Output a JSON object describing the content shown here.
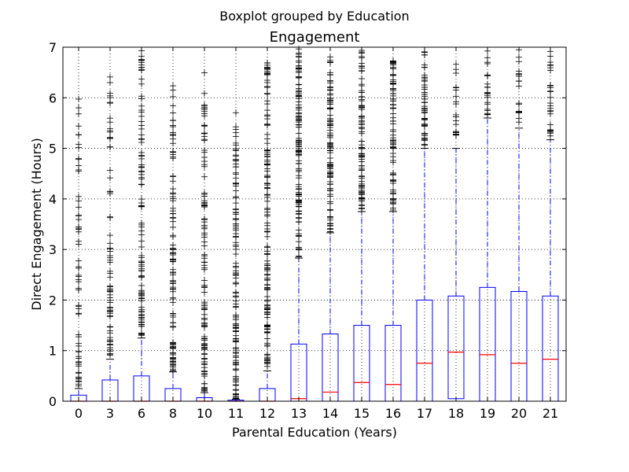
{
  "chart_data": {
    "type": "boxplot",
    "suptitle": "Boxplot grouped by Education",
    "title": "Engagement",
    "xlabel": "Parental Education (Years)",
    "ylabel": "Direct Engagement (Hours)",
    "ylim": [
      0,
      7
    ],
    "yticks": [
      "0",
      "1",
      "2",
      "3",
      "4",
      "5",
      "6",
      "7"
    ],
    "grid": true,
    "colors": {
      "box": "#0000ff",
      "median": "#ff0000",
      "flier": "#000000"
    },
    "categories": [
      "0",
      "3",
      "6",
      "8",
      "10",
      "11",
      "12",
      "13",
      "14",
      "15",
      "16",
      "17",
      "18",
      "19",
      "20",
      "21"
    ],
    "boxes": [
      {
        "q1": 0.0,
        "median": 0.0,
        "q3": 0.12,
        "whisker_low": 0.0,
        "whisker_high": 0.25,
        "fliers_from": 0.3,
        "fliers_to": 6.17,
        "density": 0.35
      },
      {
        "q1": 0.0,
        "median": 0.0,
        "q3": 0.42,
        "whisker_low": 0.0,
        "whisker_high": 0.83,
        "fliers_from": 0.9,
        "fliers_to": 6.5,
        "density": 0.45
      },
      {
        "q1": 0.0,
        "median": 0.0,
        "q3": 0.5,
        "whisker_low": 0.0,
        "whisker_high": 1.25,
        "fliers_from": 1.3,
        "fliers_to": 6.95,
        "density": 0.6
      },
      {
        "q1": 0.0,
        "median": 0.0,
        "q3": 0.25,
        "whisker_low": 0.0,
        "whisker_high": 0.58,
        "fliers_from": 0.6,
        "fliers_to": 6.27,
        "density": 0.6
      },
      {
        "q1": 0.0,
        "median": 0.0,
        "q3": 0.07,
        "whisker_low": 0.0,
        "whisker_high": 0.17,
        "fliers_from": 0.2,
        "fliers_to": 6.5,
        "density": 0.6
      },
      {
        "q1": 0.0,
        "median": 0.0,
        "q3": 0.02,
        "whisker_low": 0.0,
        "whisker_high": 0.04,
        "fliers_from": 0.05,
        "fliers_to": 5.9,
        "density": 0.7
      },
      {
        "q1": 0.0,
        "median": 0.0,
        "q3": 0.25,
        "whisker_low": 0.0,
        "whisker_high": 0.6,
        "fliers_from": 0.65,
        "fliers_to": 6.85,
        "density": 0.75
      },
      {
        "q1": 0.0,
        "median": 0.05,
        "q3": 1.13,
        "whisker_low": 0.0,
        "whisker_high": 2.83,
        "fliers_from": 2.85,
        "fliers_to": 7.0,
        "density": 1.0
      },
      {
        "q1": 0.0,
        "median": 0.18,
        "q3": 1.33,
        "whisker_low": 0.0,
        "whisker_high": 3.33,
        "fliers_from": 3.35,
        "fliers_to": 6.95,
        "density": 0.95
      },
      {
        "q1": 0.0,
        "median": 0.37,
        "q3": 1.5,
        "whisker_low": 0.0,
        "whisker_high": 3.75,
        "fliers_from": 3.75,
        "fliers_to": 6.95,
        "density": 0.95
      },
      {
        "q1": 0.0,
        "median": 0.33,
        "q3": 1.5,
        "whisker_low": 0.0,
        "whisker_high": 3.75,
        "fliers_from": 3.78,
        "fliers_to": 6.75,
        "density": 0.85
      },
      {
        "q1": 0.0,
        "median": 0.75,
        "q3": 2.0,
        "whisker_low": 0.0,
        "whisker_high": 5.0,
        "fliers_from": 5.05,
        "fliers_to": 6.97,
        "density": 0.9
      },
      {
        "q1": 0.05,
        "median": 0.97,
        "q3": 2.08,
        "whisker_low": 0.0,
        "whisker_high": 5.0,
        "fliers_from": 5.25,
        "fliers_to": 6.8,
        "density": 0.45
      },
      {
        "q1": 0.0,
        "median": 0.92,
        "q3": 2.25,
        "whisker_low": 0.0,
        "whisker_high": 5.6,
        "fliers_from": 5.62,
        "fliers_to": 6.95,
        "density": 0.6
      },
      {
        "q1": 0.0,
        "median": 0.75,
        "q3": 2.17,
        "whisker_low": 0.0,
        "whisker_high": 5.4,
        "fliers_from": 5.5,
        "fliers_to": 6.95,
        "density": 0.45
      },
      {
        "q1": 0.0,
        "median": 0.83,
        "q3": 2.08,
        "whisker_low": 0.0,
        "whisker_high": 5.17,
        "fliers_from": 5.2,
        "fliers_to": 6.95,
        "density": 0.55
      }
    ]
  }
}
